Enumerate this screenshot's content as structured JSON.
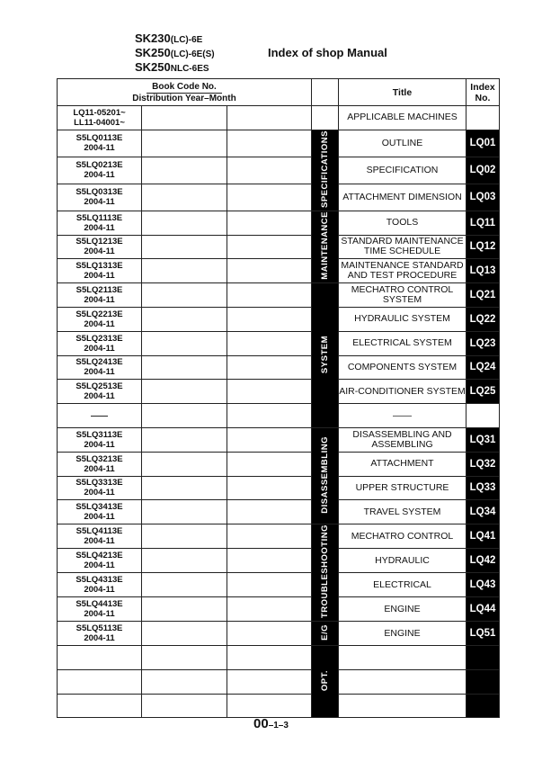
{
  "header": {
    "models": [
      {
        "main": "SK230",
        "sub": "(LC)-6E"
      },
      {
        "main": "SK250",
        "sub": "(LC)-6E(S)"
      },
      {
        "main": "SK250",
        "sub": "NLC-6ES"
      }
    ],
    "title": "Index of shop Manual"
  },
  "table": {
    "col_book_code": "Book Code No.",
    "col_distribution": "Distribution Year–Month",
    "col_title": "Title",
    "col_index": "Index No.",
    "rows": [
      {
        "code": "LQ11-05201~",
        "date": "LL11-04001~",
        "title": "APPLICABLE MACHINES",
        "index": "",
        "index_black": false
      },
      {
        "code": "S5LQ0113E",
        "date": "2004-11",
        "title": "OUTLINE",
        "index": "LQ01",
        "index_black": true
      },
      {
        "code": "S5LQ0213E",
        "date": "2004-11",
        "title": "SPECIFICATION",
        "index": "LQ02",
        "index_black": true
      },
      {
        "code": "S5LQ0313E",
        "date": "2004-11",
        "title": "ATTACHMENT DIMENSION",
        "index": "LQ03",
        "index_black": true
      },
      {
        "code": "S5LQ1113E",
        "date": "2004-11",
        "title": "TOOLS",
        "index": "LQ11",
        "index_black": true
      },
      {
        "code": "S5LQ1213E",
        "date": "2004-11",
        "title": "STANDARD MAINTENANCE TIME SCHEDULE",
        "index": "LQ12",
        "index_black": true
      },
      {
        "code": "S5LQ1313E",
        "date": "2004-11",
        "title": "MAINTENANCE STANDARD AND TEST PROCEDURE",
        "index": "LQ13",
        "index_black": true
      },
      {
        "code": "S5LQ2113E",
        "date": "2004-11",
        "title": "MECHATRO CONTROL SYSTEM",
        "index": "LQ21",
        "index_black": true
      },
      {
        "code": "S5LQ2213E",
        "date": "2004-11",
        "title": "HYDRAULIC SYSTEM",
        "index": "LQ22",
        "index_black": true
      },
      {
        "code": "S5LQ2313E",
        "date": "2004-11",
        "title": "ELECTRICAL SYSTEM",
        "index": "LQ23",
        "index_black": true
      },
      {
        "code": "S5LQ2413E",
        "date": "2004-11",
        "title": "COMPONENTS SYSTEM",
        "index": "LQ24",
        "index_black": true
      },
      {
        "code": "S5LQ2513E",
        "date": "2004-11",
        "title": "AIR-CONDITIONER SYSTEM",
        "index": "LQ25",
        "index_black": true
      },
      {
        "code": "——",
        "date": "",
        "title": "——",
        "index": "",
        "index_black": false
      },
      {
        "code": "S5LQ3113E",
        "date": "2004-11",
        "title": "DISASSEMBLING AND ASSEMBLING",
        "index": "LQ31",
        "index_black": true
      },
      {
        "code": "S5LQ3213E",
        "date": "2004-11",
        "title": "ATTACHMENT",
        "index": "LQ32",
        "index_black": true
      },
      {
        "code": "S5LQ3313E",
        "date": "2004-11",
        "title": "UPPER STRUCTURE",
        "index": "LQ33",
        "index_black": true
      },
      {
        "code": "S5LQ3413E",
        "date": "2004-11",
        "title": "TRAVEL SYSTEM",
        "index": "LQ34",
        "index_black": true
      },
      {
        "code": "S5LQ4113E",
        "date": "2004-11",
        "title": "MECHATRO CONTROL",
        "index": "LQ41",
        "index_black": true
      },
      {
        "code": "S5LQ4213E",
        "date": "2004-11",
        "title": "HYDRAULIC",
        "index": "LQ42",
        "index_black": true
      },
      {
        "code": "S5LQ4313E",
        "date": "2004-11",
        "title": "ELECTRICAL",
        "index": "LQ43",
        "index_black": true
      },
      {
        "code": "S5LQ4413E",
        "date": "2004-11",
        "title": "ENGINE",
        "index": "LQ44",
        "index_black": true
      },
      {
        "code": "S5LQ5113E",
        "date": "2004-11",
        "title": "ENGINE",
        "index": "LQ51",
        "index_black": true
      },
      {
        "code": "",
        "date": "",
        "title": "",
        "index": "",
        "index_black": true
      },
      {
        "code": "",
        "date": "",
        "title": "",
        "index": "",
        "index_black": true
      },
      {
        "code": "",
        "date": "",
        "title": "",
        "index": "",
        "index_black": true
      }
    ],
    "categories": [
      {
        "label": "",
        "start": 0,
        "span": 1,
        "black": false
      },
      {
        "label": "SPECIFICATIONS",
        "start": 1,
        "span": 3,
        "black": true
      },
      {
        "label": "MAINTENANCE",
        "start": 4,
        "span": 3,
        "black": true
      },
      {
        "label": "SYSTEM",
        "start": 7,
        "span": 6,
        "black": true
      },
      {
        "label": "DISASSEMBLING",
        "start": 13,
        "span": 4,
        "black": true
      },
      {
        "label": "TROUBLESHOOTING",
        "start": 17,
        "span": 4,
        "black": true
      },
      {
        "label": "E/G",
        "start": 21,
        "span": 1,
        "black": true
      },
      {
        "label": "OPT.",
        "start": 22,
        "span": 3,
        "black": true
      }
    ]
  },
  "footer": {
    "main": "00",
    "sub": "–1–3"
  }
}
